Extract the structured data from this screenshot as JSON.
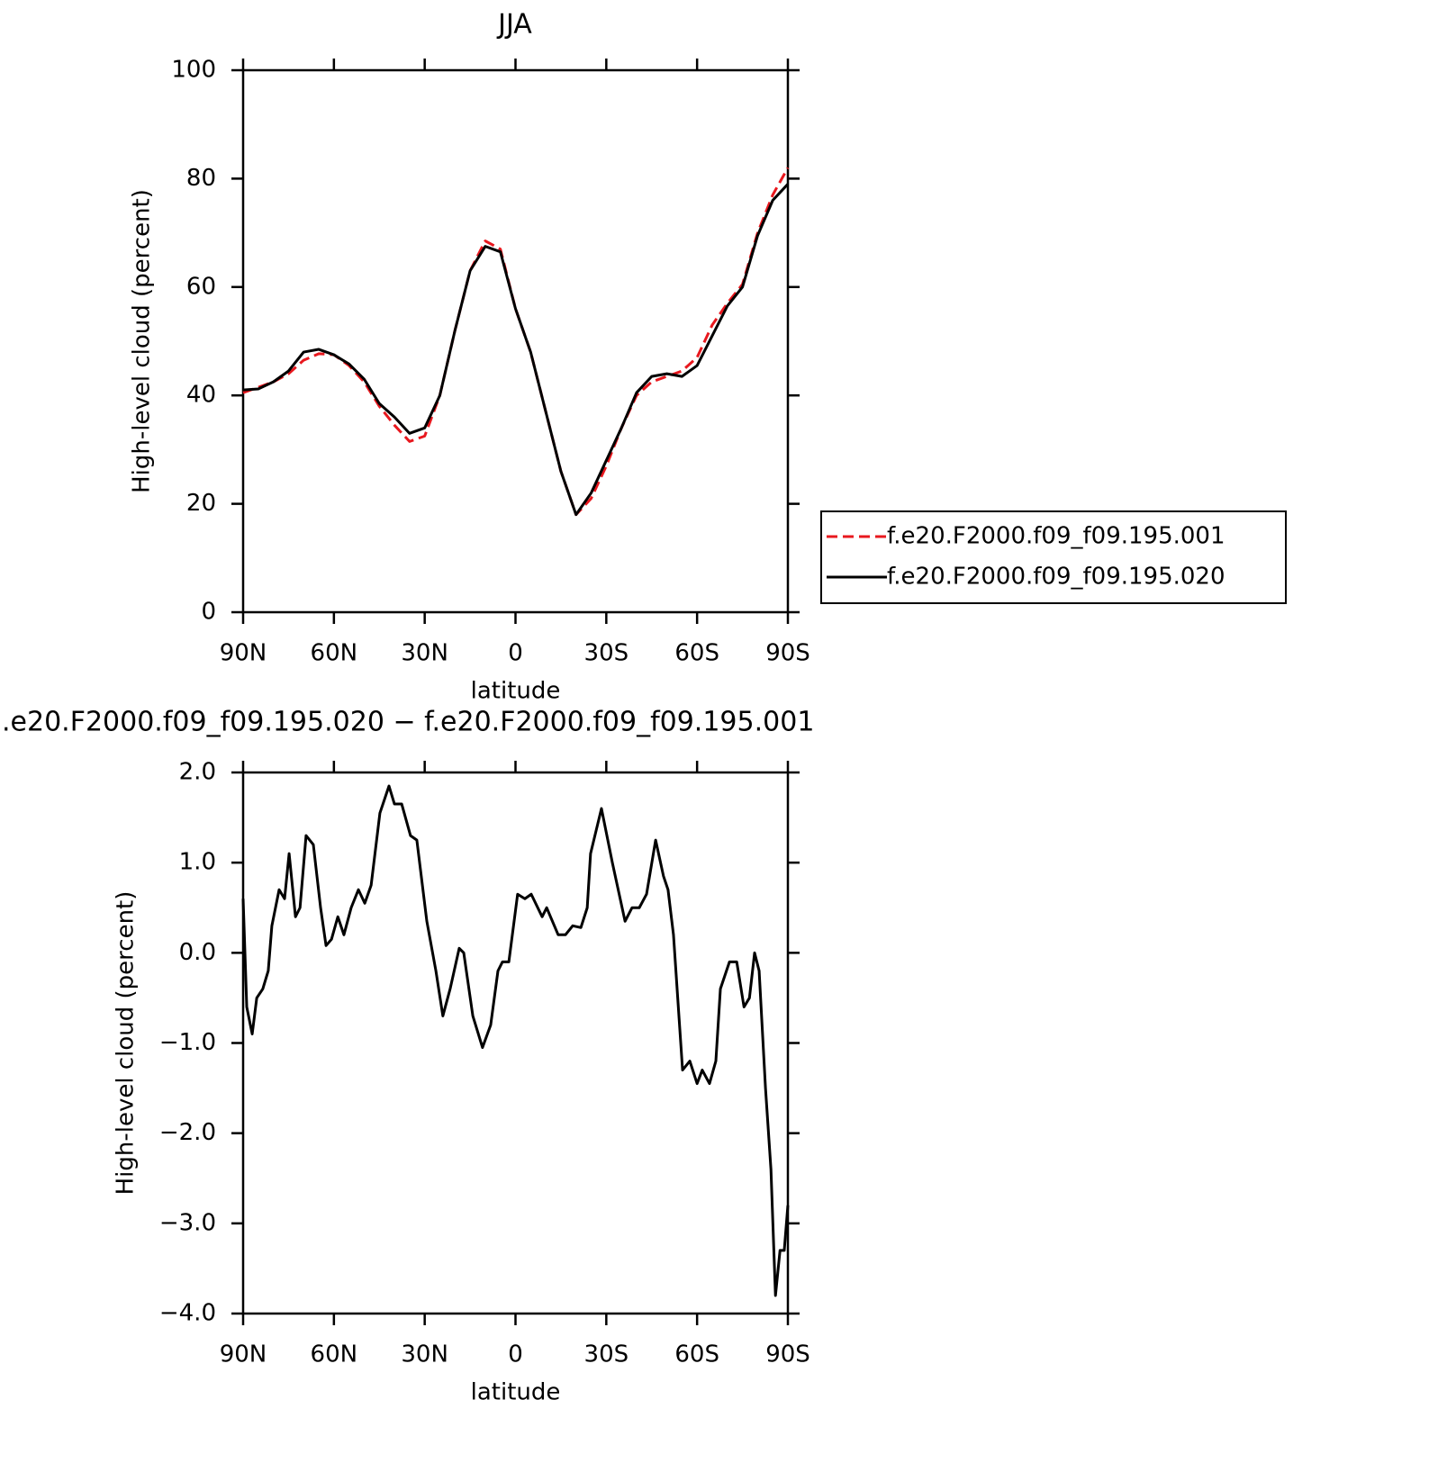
{
  "chart_data": [
    {
      "type": "line",
      "title": "JJA",
      "xlabel": "latitude",
      "ylabel": "High-level cloud (percent)",
      "x": [
        90,
        85,
        80,
        75,
        70,
        65,
        60,
        55,
        50,
        45,
        40,
        35,
        30,
        25,
        20,
        15,
        10,
        5,
        0,
        -5,
        -10,
        -15,
        -20,
        -25,
        -30,
        -35,
        -40,
        -45,
        -50,
        -55,
        -60,
        -65,
        -70,
        -75,
        -80,
        -85,
        -90
      ],
      "xlim": [
        90,
        -90
      ],
      "xticks": [
        {
          "value": 90,
          "label": "90N"
        },
        {
          "value": 60,
          "label": "60N"
        },
        {
          "value": 30,
          "label": "30N"
        },
        0,
        {
          "value": -30,
          "label": "30S"
        },
        {
          "value": -60,
          "label": "60S"
        },
        {
          "value": -90,
          "label": "90S"
        }
      ],
      "ylim": [
        0,
        100
      ],
      "yticks": [
        0,
        20,
        40,
        60,
        80,
        100
      ],
      "series": [
        {
          "name": "f.e20.F2000.f09_f09.195.001",
          "color": "#e8181e",
          "dashed": true,
          "values": [
            40.5,
            41.5,
            42.5,
            44,
            46.5,
            47.7,
            47.5,
            45.5,
            42.5,
            38,
            34.5,
            31.5,
            32.5,
            40,
            52,
            63,
            68.5,
            67,
            56,
            48,
            37,
            26,
            18,
            21,
            27,
            34,
            40,
            42.5,
            43.5,
            44.5,
            47,
            53,
            57,
            60.5,
            70,
            77,
            82
          ]
        },
        {
          "name": "f.e20.F2000.f09_f09.195.020",
          "color": "#000000",
          "dashed": false,
          "values": [
            41,
            41.2,
            42.5,
            44.5,
            48,
            48.5,
            47.5,
            45.8,
            43,
            38.5,
            36,
            33,
            34,
            40,
            52,
            63,
            67.5,
            66.5,
            56,
            48,
            37,
            26,
            18,
            22,
            28,
            34,
            40.5,
            43.5,
            44,
            43.5,
            45.5,
            51,
            56.5,
            60,
            69.5,
            76,
            79
          ]
        }
      ]
    },
    {
      "type": "line",
      "title": ".e20.F2000.f09_f09.195.020 − f.e20.F2000.f09_f09.195.001",
      "xlabel": "latitude",
      "ylabel": "High-level cloud (percent)",
      "x": [
        90,
        88.8,
        87.0,
        85.5,
        83.5,
        81.7,
        80.5,
        78.1,
        76.3,
        74.8,
        72.7,
        71.2,
        69.2,
        66.8,
        64.4,
        62.6,
        60.8,
        58.7,
        56.7,
        54.3,
        51.9,
        49.8,
        47.7,
        44.8,
        41.8,
        40.0,
        37.6,
        34.7,
        32.6,
        29.3,
        26.3,
        24.0,
        21.6,
        18.6,
        17.1,
        14.1,
        10.9,
        8.2,
        5.8,
        4.3,
        2.2,
        -0.7,
        -3.1,
        -5.2,
        -8.8,
        -10.3,
        -14.1,
        -16.5,
        -18.9,
        -21.6,
        -23.7,
        -24.8,
        -28.4,
        -32.0,
        -36.2,
        -38.5,
        -40.9,
        -43.3,
        -46.3,
        -48.9,
        -50.4,
        -52.2,
        -55.2,
        -57.6,
        -60.0,
        -61.7,
        -64.1,
        -66.2,
        -67.7,
        -70.7,
        -73.1,
        -75.5,
        -77.3,
        -79.0,
        -80.5,
        -82.6,
        -84.4,
        -85.9,
        -87.4,
        -88.8,
        -90
      ],
      "xlim": [
        90,
        -90
      ],
      "xticks": [
        {
          "value": 90,
          "label": "90N"
        },
        {
          "value": 60,
          "label": "60N"
        },
        {
          "value": 30,
          "label": "30N"
        },
        0,
        {
          "value": -30,
          "label": "30S"
        },
        {
          "value": -60,
          "label": "60S"
        },
        {
          "value": -90,
          "label": "90S"
        }
      ],
      "ylim": [
        -4,
        2
      ],
      "yticks": [
        {
          "value": -4,
          "label": "−4.0"
        },
        {
          "value": -3,
          "label": "−3.0"
        },
        {
          "value": -2,
          "label": "−2.0"
        },
        {
          "value": -1,
          "label": "−1.0"
        },
        {
          "value": 0,
          "label": "0.0"
        },
        {
          "value": 1,
          "label": "1.0"
        },
        {
          "value": 2,
          "label": "2.0"
        }
      ],
      "color": "#000000",
      "values": [
        0.6,
        -0.6,
        -0.9,
        -0.5,
        -0.4,
        -0.2,
        0.3,
        0.7,
        0.6,
        1.1,
        0.4,
        0.5,
        1.3,
        1.2,
        0.5,
        0.08,
        0.15,
        0.4,
        0.2,
        0.5,
        0.7,
        0.55,
        0.75,
        1.55,
        1.85,
        1.65,
        1.65,
        1.3,
        1.25,
        0.35,
        -0.2,
        -0.7,
        -0.4,
        0.05,
        0.0,
        -0.7,
        -1.05,
        -0.8,
        -0.2,
        -0.1,
        -0.1,
        0.65,
        0.6,
        0.65,
        0.4,
        0.5,
        0.2,
        0.2,
        0.3,
        0.28,
        0.5,
        1.1,
        1.6,
        1.0,
        0.35,
        0.5,
        0.5,
        0.65,
        1.25,
        0.85,
        0.7,
        0.2,
        -1.3,
        -1.2,
        -1.45,
        -1.3,
        -1.45,
        -1.2,
        -0.4,
        -0.1,
        -0.1,
        -0.6,
        -0.5,
        0.0,
        -0.2,
        -1.5,
        -2.4,
        -3.8,
        -3.3,
        -3.3,
        -2.8
      ]
    }
  ]
}
